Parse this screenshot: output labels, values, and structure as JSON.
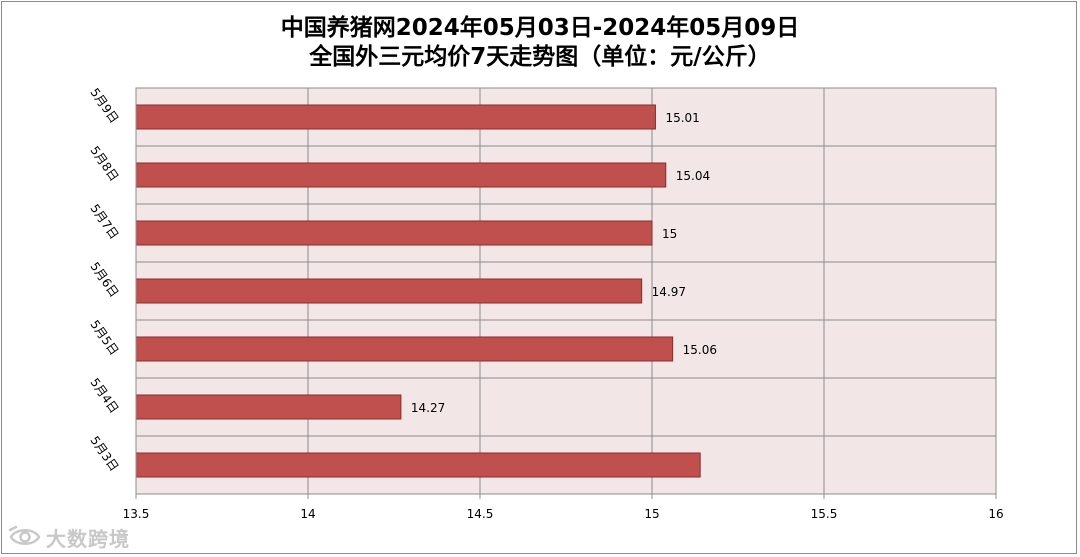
{
  "chart_data": {
    "type": "bar",
    "orientation": "horizontal",
    "title": "中国养猪网2024年05月03日-2024年05月09日",
    "subtitle": "全国外三元均价7天走势图（单位：元/公斤）",
    "categories": [
      "5月9日",
      "5月8日",
      "5月7日",
      "5月6日",
      "5月5日",
      "5月4日",
      "5月3日"
    ],
    "values": [
      15.01,
      15.04,
      15,
      14.97,
      15.06,
      14.27,
      15.14
    ],
    "data_labels": [
      "15.01",
      "15.04",
      "15",
      "14.97",
      "15.06",
      "14.27",
      ""
    ],
    "xlim": [
      13.5,
      16
    ],
    "x_ticks": [
      "13.5",
      "14",
      "14.5",
      "15",
      "15.5",
      "16"
    ],
    "grid": true,
    "legend": "none",
    "colors": {
      "bar_fill": "#c0504d",
      "bar_stroke": "#8b2b29",
      "plot_bg": "#f2e6e6",
      "grid": "#8c8c8c"
    }
  },
  "watermark": {
    "text": "大数跨境",
    "icon": "eye-logo-icon"
  }
}
